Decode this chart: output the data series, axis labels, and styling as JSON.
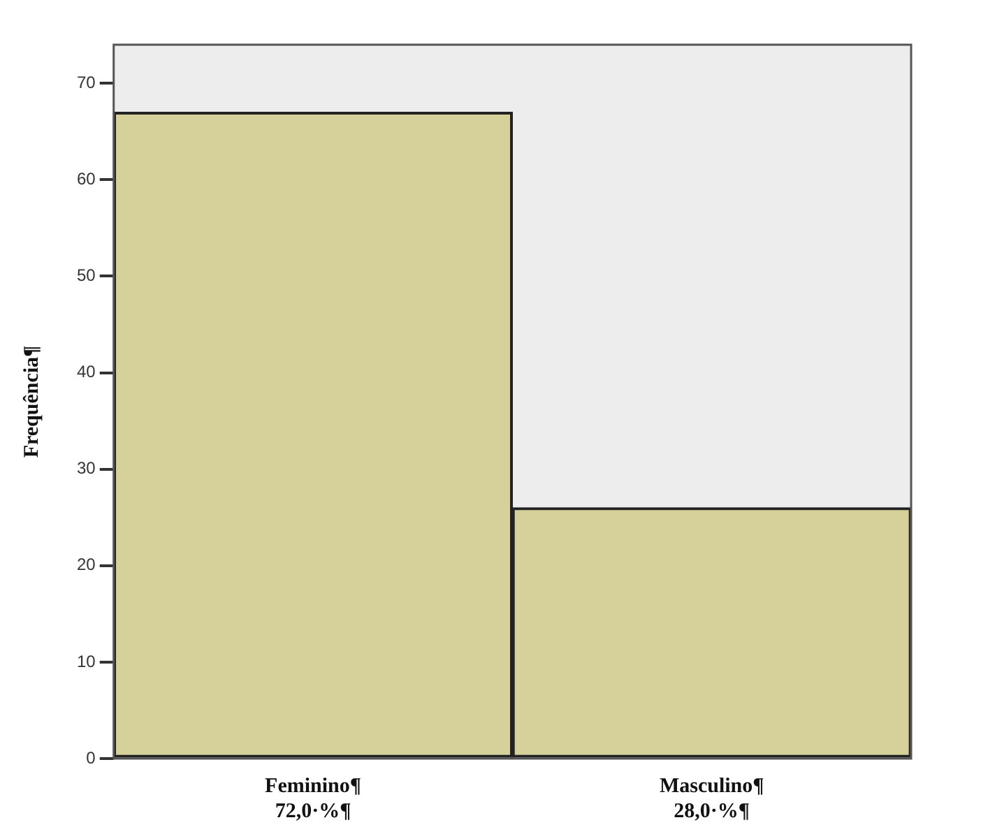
{
  "chart_data": {
    "type": "bar",
    "ylabel": "Frequência¶",
    "categories": [
      "Feminino¶\n72,0·%¶",
      "Masculino¶\n28,0·%¶"
    ],
    "values": [
      67,
      26
    ],
    "color": "#d6d19a",
    "ylim": [
      0,
      74
    ],
    "yticks": [
      0,
      10,
      20,
      30,
      40,
      50,
      60,
      70
    ],
    "grid": false,
    "legend": false
  }
}
